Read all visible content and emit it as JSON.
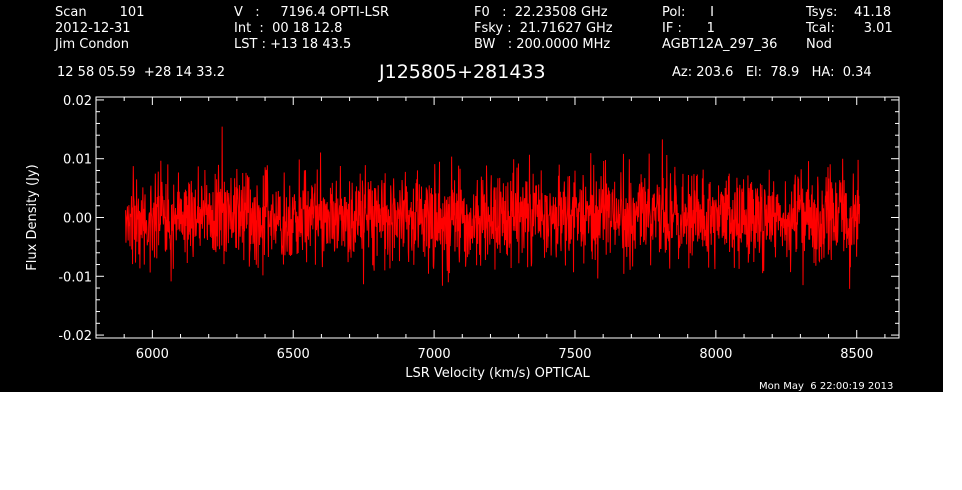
{
  "header": {
    "col1": [
      "Scan        101",
      "2012-12-31",
      "Jim Condon"
    ],
    "col2": [
      "V   :     7196.4 OPTI-LSR",
      "Int  :  00 18 12.8",
      "LST : +13 18 43.5"
    ],
    "col3": [
      "F0   :  22.23508 GHz",
      "Fsky :  21.71627 GHz",
      "BW   : 200.0000 MHz"
    ],
    "col4": [
      "Pol:      I",
      "IF :      1",
      "AGBT12A_297_36"
    ],
    "col5": [
      "Tsys:    41.18",
      "Tcal:       3.01",
      "Nod"
    ],
    "coords": "12 58 05.59  +28 14 33.2",
    "source": "J125805+281433",
    "azel": "Az: 203.6   El:  78.9   HA:  0.34",
    "timestamp": "Mon May  6 22:00:19 2013"
  },
  "chart_data": {
    "type": "line",
    "title": "J125805+281433",
    "xlabel": "LSR Velocity (km/s) OPTICAL",
    "ylabel": "Flux Density (Jy)",
    "xlim": [
      5800,
      8650
    ],
    "ylim": [
      -0.0205,
      0.0205
    ],
    "x_ticks": [
      6000,
      6500,
      7000,
      7500,
      8000,
      8500
    ],
    "x_tick_labels": [
      "6000",
      "6500",
      "7000",
      "7500",
      "8000",
      "8500"
    ],
    "y_ticks": [
      -0.02,
      -0.01,
      0.0,
      0.01,
      0.02
    ],
    "y_tick_labels": [
      "-0.02",
      "-0.01",
      "0.00",
      "0.01",
      "0.02"
    ],
    "grid": false,
    "series": [
      {
        "color": "#ff0000",
        "x_start": 5905,
        "x_end": 8510,
        "mean": 0.0,
        "rms": 0.004,
        "n_points": 2000
      }
    ]
  }
}
